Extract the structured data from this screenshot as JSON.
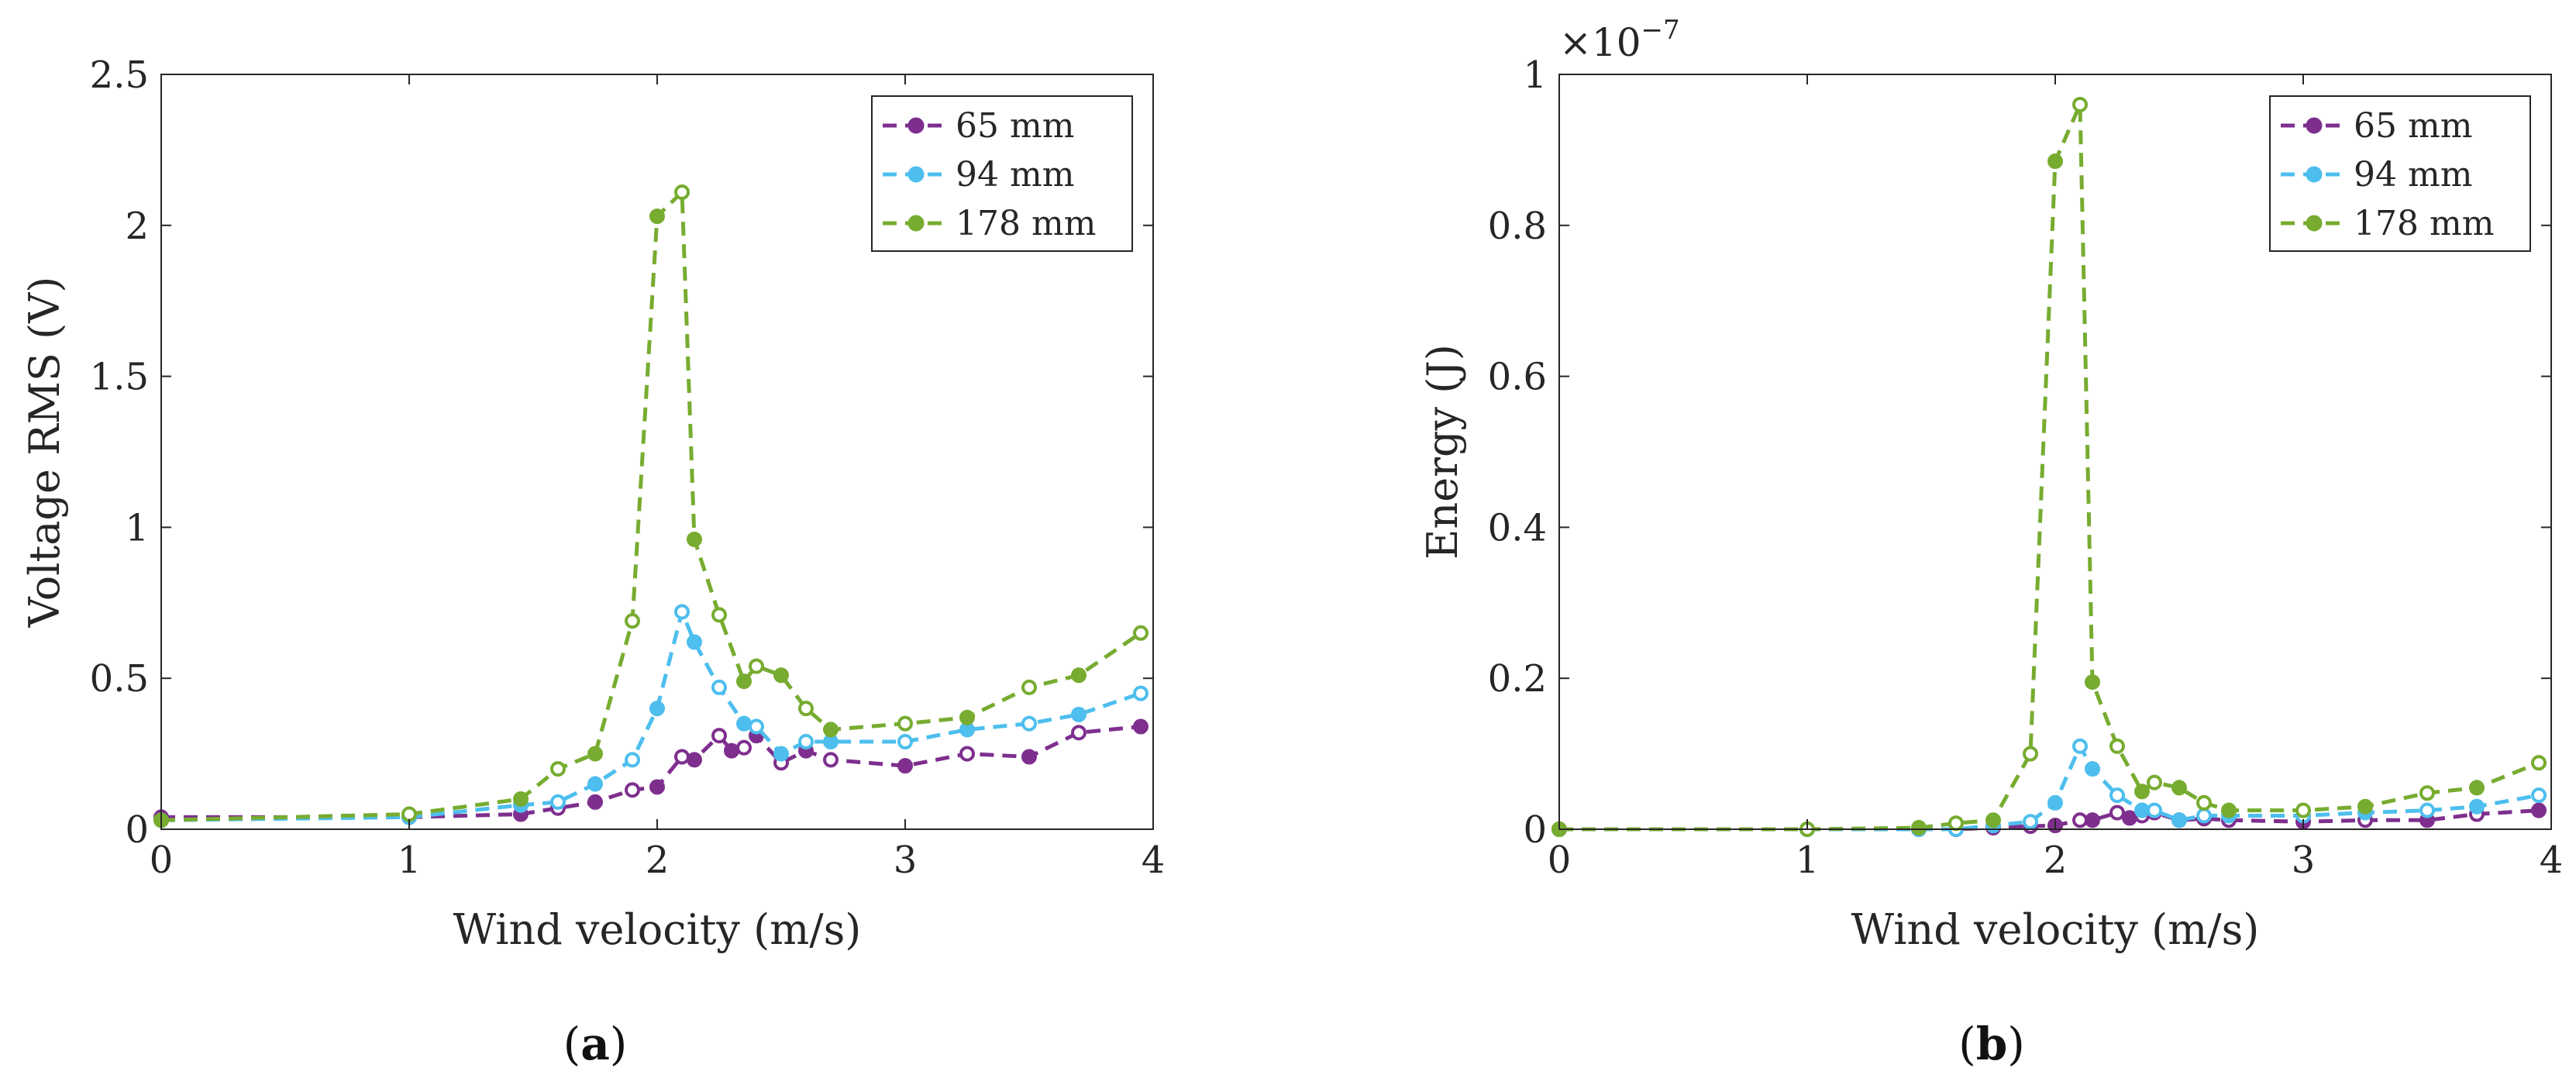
{
  "chart_data": [
    {
      "type": "line",
      "panel_label": "a",
      "xlabel": "Wind velocity (m/s)",
      "ylabel": "Voltage RMS (V)",
      "xlim": [
        0,
        4
      ],
      "ylim": [
        0,
        2.5
      ],
      "xticks": [
        "0",
        "1",
        "2",
        "3",
        "4"
      ],
      "xtick_values": [
        0,
        1,
        2,
        3,
        4
      ],
      "yticks": [
        "0",
        "0.5",
        "1",
        "1.5",
        "2",
        "2.5"
      ],
      "ytick_values": [
        0,
        0.5,
        1,
        1.5,
        2,
        2.5
      ],
      "y_exponent": "",
      "legend_position": "top-right",
      "series": [
        {
          "name": "65 mm",
          "color": "#7E2F8E",
          "points": [
            [
              0,
              0.04
            ],
            [
              1,
              0.04
            ],
            [
              1.45,
              0.05
            ],
            [
              1.6,
              0.07
            ],
            [
              1.75,
              0.09
            ],
            [
              1.9,
              0.13
            ],
            [
              2.0,
              0.14
            ],
            [
              2.1,
              0.24
            ],
            [
              2.15,
              0.23
            ],
            [
              2.25,
              0.31
            ],
            [
              2.3,
              0.26
            ],
            [
              2.35,
              0.27
            ],
            [
              2.4,
              0.31
            ],
            [
              2.5,
              0.22
            ],
            [
              2.6,
              0.26
            ],
            [
              2.7,
              0.23
            ],
            [
              3.0,
              0.21
            ],
            [
              3.25,
              0.25
            ],
            [
              3.5,
              0.24
            ],
            [
              3.7,
              0.32
            ],
            [
              3.95,
              0.34
            ]
          ]
        },
        {
          "name": "94 mm",
          "color": "#4DBEEE",
          "points": [
            [
              0,
              0.03
            ],
            [
              1,
              0.04
            ],
            [
              1.45,
              0.08
            ],
            [
              1.6,
              0.09
            ],
            [
              1.75,
              0.15
            ],
            [
              1.9,
              0.23
            ],
            [
              2.0,
              0.4
            ],
            [
              2.1,
              0.72
            ],
            [
              2.15,
              0.62
            ],
            [
              2.25,
              0.47
            ],
            [
              2.35,
              0.35
            ],
            [
              2.4,
              0.34
            ],
            [
              2.5,
              0.25
            ],
            [
              2.6,
              0.29
            ],
            [
              2.7,
              0.29
            ],
            [
              3.0,
              0.29
            ],
            [
              3.25,
              0.33
            ],
            [
              3.5,
              0.35
            ],
            [
              3.7,
              0.38
            ],
            [
              3.95,
              0.45
            ]
          ]
        },
        {
          "name": "178 mm",
          "color": "#77AC30",
          "points": [
            [
              0,
              0.03
            ],
            [
              1,
              0.05
            ],
            [
              1.45,
              0.1
            ],
            [
              1.6,
              0.2
            ],
            [
              1.75,
              0.25
            ],
            [
              1.9,
              0.69
            ],
            [
              2.0,
              2.03
            ],
            [
              2.1,
              2.11
            ],
            [
              2.15,
              0.96
            ],
            [
              2.25,
              0.71
            ],
            [
              2.35,
              0.49
            ],
            [
              2.4,
              0.54
            ],
            [
              2.5,
              0.51
            ],
            [
              2.6,
              0.4
            ],
            [
              2.7,
              0.33
            ],
            [
              3.0,
              0.35
            ],
            [
              3.25,
              0.37
            ],
            [
              3.5,
              0.47
            ],
            [
              3.7,
              0.51
            ],
            [
              3.95,
              0.65
            ]
          ]
        }
      ]
    },
    {
      "type": "line",
      "panel_label": "b",
      "xlabel": "Wind velocity (m/s)",
      "ylabel": "Energy (J)",
      "xlim": [
        0,
        4
      ],
      "ylim": [
        0,
        1
      ],
      "xticks": [
        "0",
        "1",
        "2",
        "3",
        "4"
      ],
      "xtick_values": [
        0,
        1,
        2,
        3,
        4
      ],
      "yticks": [
        "0",
        "0.2",
        "0.4",
        "0.6",
        "0.8",
        "1"
      ],
      "ytick_values": [
        0,
        0.2,
        0.4,
        0.6,
        0.8,
        1
      ],
      "y_exponent_base": "×10",
      "y_exponent": "−7",
      "legend_position": "top-right",
      "series": [
        {
          "name": "65 mm",
          "color": "#7E2F8E",
          "points": [
            [
              0,
              0
            ],
            [
              1,
              0
            ],
            [
              1.45,
              0
            ],
            [
              1.6,
              0
            ],
            [
              1.75,
              0.002
            ],
            [
              1.9,
              0.004
            ],
            [
              2.0,
              0.005
            ],
            [
              2.1,
              0.012
            ],
            [
              2.15,
              0.012
            ],
            [
              2.25,
              0.022
            ],
            [
              2.3,
              0.015
            ],
            [
              2.35,
              0.018
            ],
            [
              2.4,
              0.022
            ],
            [
              2.5,
              0.012
            ],
            [
              2.6,
              0.014
            ],
            [
              2.7,
              0.012
            ],
            [
              3.0,
              0.01
            ],
            [
              3.25,
              0.012
            ],
            [
              3.5,
              0.012
            ],
            [
              3.7,
              0.02
            ],
            [
              3.95,
              0.025
            ]
          ]
        },
        {
          "name": "94 mm",
          "color": "#4DBEEE",
          "points": [
            [
              0,
              0
            ],
            [
              1,
              0
            ],
            [
              1.45,
              0
            ],
            [
              1.6,
              0
            ],
            [
              1.75,
              0.005
            ],
            [
              1.9,
              0.01
            ],
            [
              2.0,
              0.035
            ],
            [
              2.1,
              0.11
            ],
            [
              2.15,
              0.08
            ],
            [
              2.25,
              0.045
            ],
            [
              2.35,
              0.025
            ],
            [
              2.4,
              0.025
            ],
            [
              2.5,
              0.012
            ],
            [
              2.6,
              0.018
            ],
            [
              2.7,
              0.018
            ],
            [
              3.0,
              0.018
            ],
            [
              3.25,
              0.022
            ],
            [
              3.5,
              0.025
            ],
            [
              3.7,
              0.03
            ],
            [
              3.95,
              0.045
            ]
          ]
        },
        {
          "name": "178 mm",
          "color": "#77AC30",
          "points": [
            [
              0,
              0
            ],
            [
              1,
              0
            ],
            [
              1.45,
              0.002
            ],
            [
              1.6,
              0.008
            ],
            [
              1.75,
              0.012
            ],
            [
              1.9,
              0.1
            ],
            [
              2.0,
              0.885
            ],
            [
              2.1,
              0.96
            ],
            [
              2.15,
              0.195
            ],
            [
              2.25,
              0.11
            ],
            [
              2.35,
              0.05
            ],
            [
              2.4,
              0.062
            ],
            [
              2.5,
              0.055
            ],
            [
              2.6,
              0.035
            ],
            [
              2.7,
              0.025
            ],
            [
              3.0,
              0.025
            ],
            [
              3.25,
              0.03
            ],
            [
              3.5,
              0.048
            ],
            [
              3.7,
              0.055
            ],
            [
              3.95,
              0.088
            ]
          ]
        }
      ]
    }
  ]
}
